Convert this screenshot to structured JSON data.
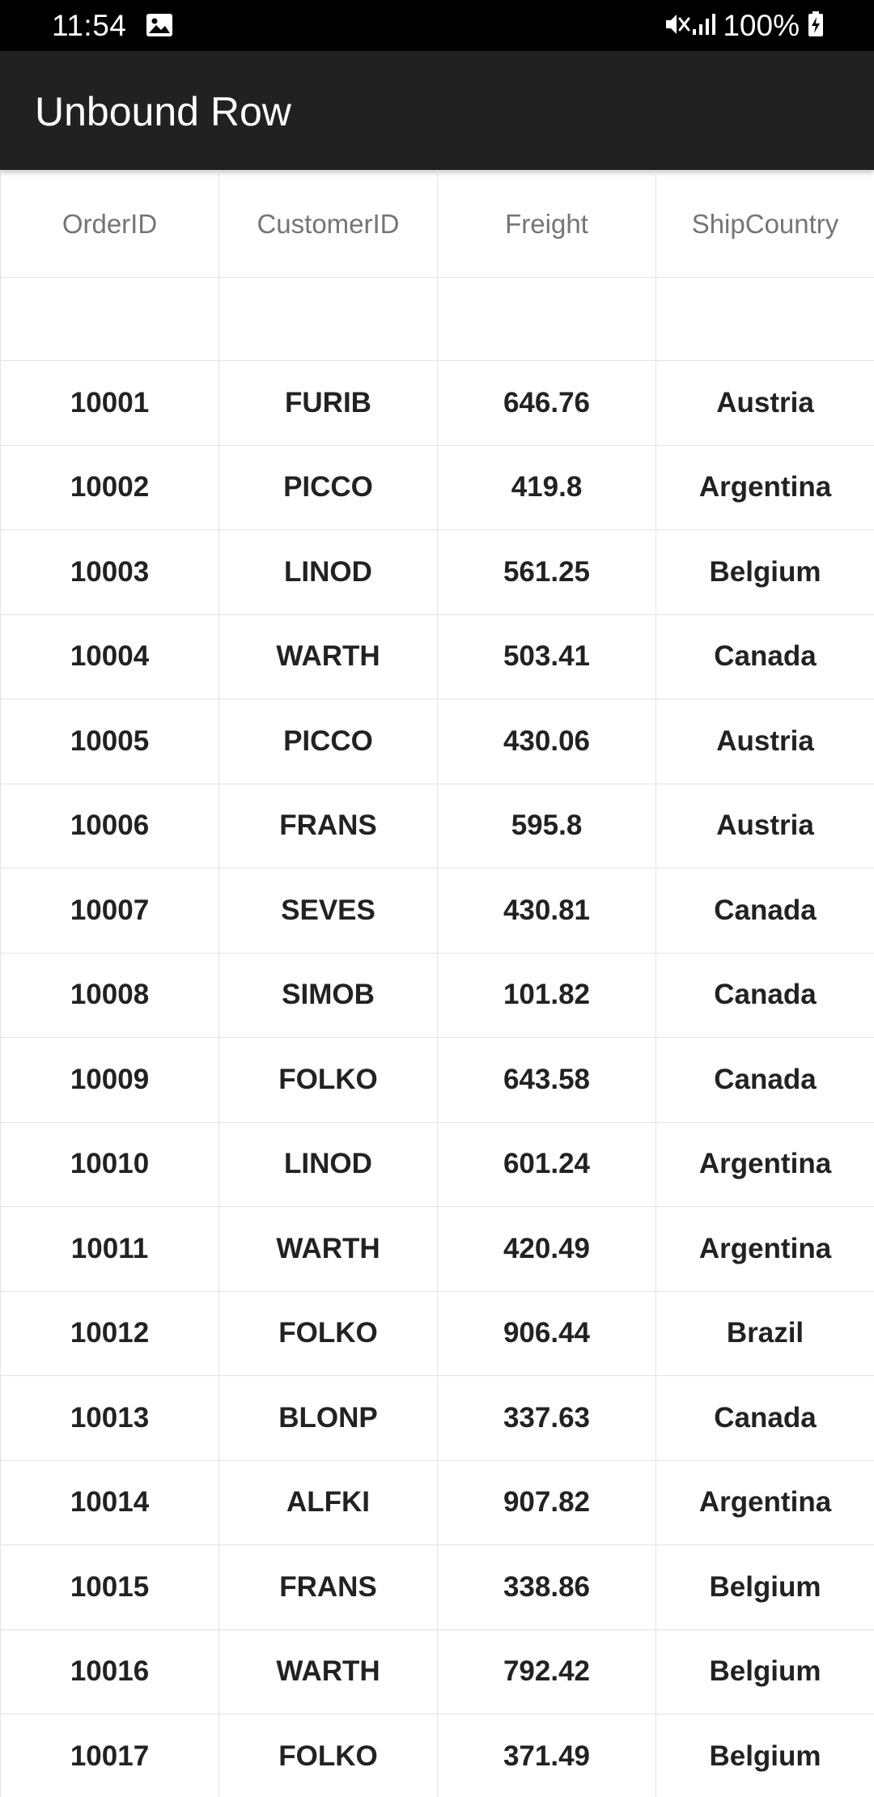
{
  "status_bar": {
    "time": "11:54",
    "battery": "100%",
    "icons": [
      "gallery-icon",
      "mute-icon",
      "signal-icon",
      "battery-charging-icon"
    ]
  },
  "app_bar": {
    "title": "Unbound Row",
    "background": "#212121"
  },
  "grid": {
    "columns": [
      "OrderID",
      "CustomerID",
      "Freight",
      "ShipCountry"
    ],
    "unbound_row": [
      "",
      "",
      "",
      ""
    ],
    "rows": [
      [
        "10001",
        "FURIB",
        "646.76",
        "Austria"
      ],
      [
        "10002",
        "PICCO",
        "419.8",
        "Argentina"
      ],
      [
        "10003",
        "LINOD",
        "561.25",
        "Belgium"
      ],
      [
        "10004",
        "WARTH",
        "503.41",
        "Canada"
      ],
      [
        "10005",
        "PICCO",
        "430.06",
        "Austria"
      ],
      [
        "10006",
        "FRANS",
        "595.8",
        "Austria"
      ],
      [
        "10007",
        "SEVES",
        "430.81",
        "Canada"
      ],
      [
        "10008",
        "SIMOB",
        "101.82",
        "Canada"
      ],
      [
        "10009",
        "FOLKO",
        "643.58",
        "Canada"
      ],
      [
        "10010",
        "LINOD",
        "601.24",
        "Argentina"
      ],
      [
        "10011",
        "WARTH",
        "420.49",
        "Argentina"
      ],
      [
        "10012",
        "FOLKO",
        "906.44",
        "Brazil"
      ],
      [
        "10013",
        "BLONP",
        "337.63",
        "Canada"
      ],
      [
        "10014",
        "ALFKI",
        "907.82",
        "Argentina"
      ],
      [
        "10015",
        "FRANS",
        "338.86",
        "Belgium"
      ],
      [
        "10016",
        "WARTH",
        "792.42",
        "Belgium"
      ],
      [
        "10017",
        "FOLKO",
        "371.49",
        "Belgium"
      ]
    ]
  }
}
